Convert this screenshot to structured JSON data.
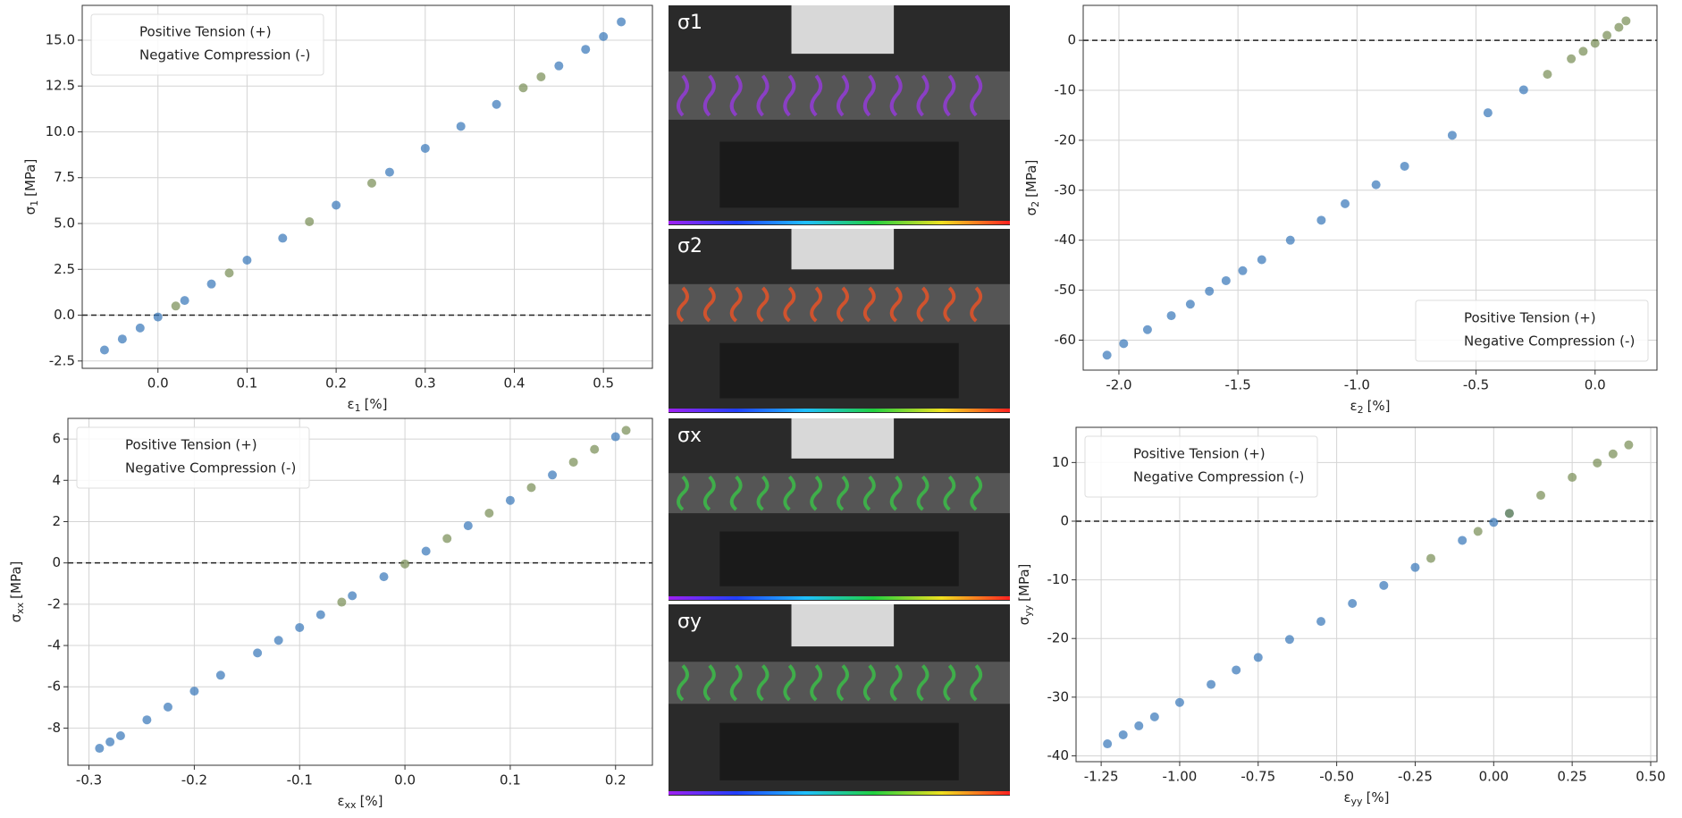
{
  "chart_data": [
    {
      "type": "scatter",
      "legend": "upper left",
      "hline": 0,
      "grid": true,
      "xlabel": {
        "symbol": "ε",
        "sub": "1",
        "unit": "[%]"
      },
      "ylabel": {
        "symbol": "σ",
        "sub": "1",
        "unit": "[MPa]"
      },
      "xlim": [
        -0.085,
        0.555
      ],
      "ylim": [
        -2.9,
        16.9
      ],
      "xticks": [
        {
          "value": 0,
          "label": "0.0"
        },
        0.1,
        0.2,
        0.3,
        0.4,
        0.5
      ],
      "yticks": [
        -2.5,
        {
          "value": 0,
          "label": "0.0"
        },
        2.5,
        {
          "value": 5,
          "label": "5.0"
        },
        7.5,
        {
          "value": 10,
          "label": "10.0"
        },
        12.5,
        {
          "value": 15,
          "label": "15.0"
        }
      ],
      "series": [
        {
          "name": "Positive Tension (+)",
          "color": "#3a78ba",
          "x": [
            -0.06,
            -0.04,
            -0.02,
            0.0,
            0.03,
            0.06,
            0.1,
            0.14,
            0.2,
            0.26,
            0.3,
            0.34,
            0.38,
            0.45,
            0.48,
            0.5,
            0.52
          ],
          "values": [
            -1.9,
            -1.3,
            -0.7,
            -0.1,
            0.8,
            1.7,
            3.0,
            4.2,
            6.0,
            7.8,
            9.1,
            10.3,
            11.5,
            13.6,
            14.5,
            15.2,
            16.0
          ]
        },
        {
          "name": "Negative Compression (-)",
          "color": "#7a8f58",
          "x": [
            0.02,
            0.08,
            0.17,
            0.24,
            0.41,
            0.43
          ],
          "values": [
            0.5,
            2.3,
            5.1,
            7.2,
            12.4,
            13.0
          ]
        }
      ]
    },
    {
      "type": "scatter",
      "legend": "lower right",
      "hline": 0,
      "grid": true,
      "xlabel": {
        "symbol": "ε",
        "sub": "2",
        "unit": "[%]"
      },
      "ylabel": {
        "symbol": "σ",
        "sub": "2",
        "unit": "[MPa]"
      },
      "xlim": [
        -2.15,
        0.26
      ],
      "ylim": [
        -66,
        7
      ],
      "xticks": [
        {
          "value": -2,
          "label": "-2.0"
        },
        -1.5,
        {
          "value": -1,
          "label": "-1.0"
        },
        -0.5,
        {
          "value": 0,
          "label": "0.0"
        }
      ],
      "yticks": [
        -60,
        -50,
        -40,
        -30,
        -20,
        -10,
        0
      ],
      "series": [
        {
          "name": "Positive Tension (+)",
          "color": "#3a78ba",
          "x": [
            -2.05,
            -1.98,
            -1.88,
            -1.78,
            -1.7,
            -1.62,
            -1.55,
            -1.48,
            -1.4,
            -1.28,
            -1.15,
            -1.05,
            -0.92,
            -0.8,
            -0.6,
            -0.45,
            -0.3
          ],
          "values": [
            -63,
            -60.7,
            -57.9,
            -55.1,
            -52.8,
            -50.2,
            -48.1,
            -46.1,
            -43.9,
            -40,
            -36,
            -32.7,
            -28.9,
            -25.2,
            -19,
            -14.5,
            -9.9
          ]
        },
        {
          "name": "Negative Compression (-)",
          "color": "#7a8f58",
          "x": [
            -0.2,
            -0.1,
            -0.05,
            0,
            0.05,
            0.1,
            0.13
          ],
          "values": [
            -6.8,
            -3.7,
            -2.2,
            -0.6,
            1.0,
            2.6,
            3.9
          ]
        }
      ]
    },
    {
      "type": "scatter",
      "legend": "upper left",
      "hline": 0,
      "grid": true,
      "xlabel": {
        "symbol": "ε",
        "sub": "xx",
        "unit": "[%]"
      },
      "ylabel": {
        "symbol": "σ",
        "sub": "xx",
        "unit": "[MPa]"
      },
      "xlim": [
        -0.32,
        0.235
      ],
      "ylim": [
        -9.8,
        7.0
      ],
      "xticks": [
        -0.3,
        -0.2,
        -0.1,
        {
          "value": 0,
          "label": "0.0"
        },
        0.1,
        0.2
      ],
      "yticks": [
        -8,
        -6,
        -4,
        -2,
        0,
        2,
        4,
        6
      ],
      "series": [
        {
          "name": "Positive Tension (+)",
          "color": "#3a78ba",
          "x": [
            -0.29,
            -0.28,
            -0.27,
            -0.245,
            -0.225,
            -0.2,
            -0.175,
            -0.14,
            -0.12,
            -0.1,
            -0.08,
            -0.05,
            -0.02,
            0.02,
            0.06,
            0.1,
            0.14,
            0.2
          ],
          "values": [
            -8.98,
            -8.67,
            -8.37,
            -7.6,
            -6.98,
            -6.21,
            -5.44,
            -4.36,
            -3.75,
            -3.13,
            -2.51,
            -1.59,
            -0.67,
            0.57,
            1.8,
            3.03,
            4.26,
            6.11
          ]
        },
        {
          "name": "Negative Compression (-)",
          "color": "#7a8f58",
          "x": [
            -0.06,
            0.0,
            0.04,
            0.08,
            0.12,
            0.16,
            0.18,
            0.21
          ],
          "values": [
            -1.9,
            -0.05,
            1.18,
            2.41,
            3.65,
            4.88,
            5.5,
            6.42
          ]
        }
      ]
    },
    {
      "type": "scatter",
      "legend": "upper left",
      "hline": 0,
      "grid": true,
      "xlabel": {
        "symbol": "ε",
        "sub": "yy",
        "unit": "[%]"
      },
      "ylabel": {
        "symbol": "σ",
        "sub": "yy",
        "unit": "[MPa]"
      },
      "xlim": [
        -1.33,
        0.52
      ],
      "ylim": [
        -41,
        16
      ],
      "xticks": [
        -1.25,
        {
          "value": -1,
          "label": "-1.00"
        },
        -0.75,
        {
          "value": -0.5,
          "label": "-0.50"
        },
        -0.25,
        {
          "value": 0,
          "label": "0.00"
        },
        0.25,
        {
          "value": 0.5,
          "label": "0.50"
        }
      ],
      "yticks": [
        -40,
        -30,
        -20,
        -10,
        0,
        10
      ],
      "series": [
        {
          "name": "Positive Tension (+)",
          "color": "#3a78ba",
          "x": [
            -1.23,
            -1.18,
            -1.13,
            -1.08,
            -1.0,
            -0.9,
            -0.82,
            -0.75,
            -0.65,
            -0.55,
            -0.45,
            -0.35,
            -0.25,
            -0.1,
            0.0,
            0.05
          ],
          "values": [
            -37.96,
            -36.42,
            -34.89,
            -33.36,
            -30.9,
            -27.83,
            -25.37,
            -23.23,
            -20.16,
            -17.09,
            -14.02,
            -10.95,
            -7.88,
            -3.27,
            -0.2,
            1.34
          ]
        },
        {
          "name": "Negative Compression (-)",
          "color": "#7a8f58",
          "x": [
            -0.2,
            -0.05,
            0.05,
            0.15,
            0.25,
            0.33,
            0.38,
            0.43
          ],
          "values": [
            -6.34,
            -1.74,
            1.34,
            4.41,
            7.48,
            9.93,
            11.47,
            13.0
          ]
        }
      ]
    }
  ],
  "panels": [
    {
      "label": "σ1"
    },
    {
      "label": "σ2"
    },
    {
      "label": "σx"
    },
    {
      "label": "σy"
    }
  ]
}
